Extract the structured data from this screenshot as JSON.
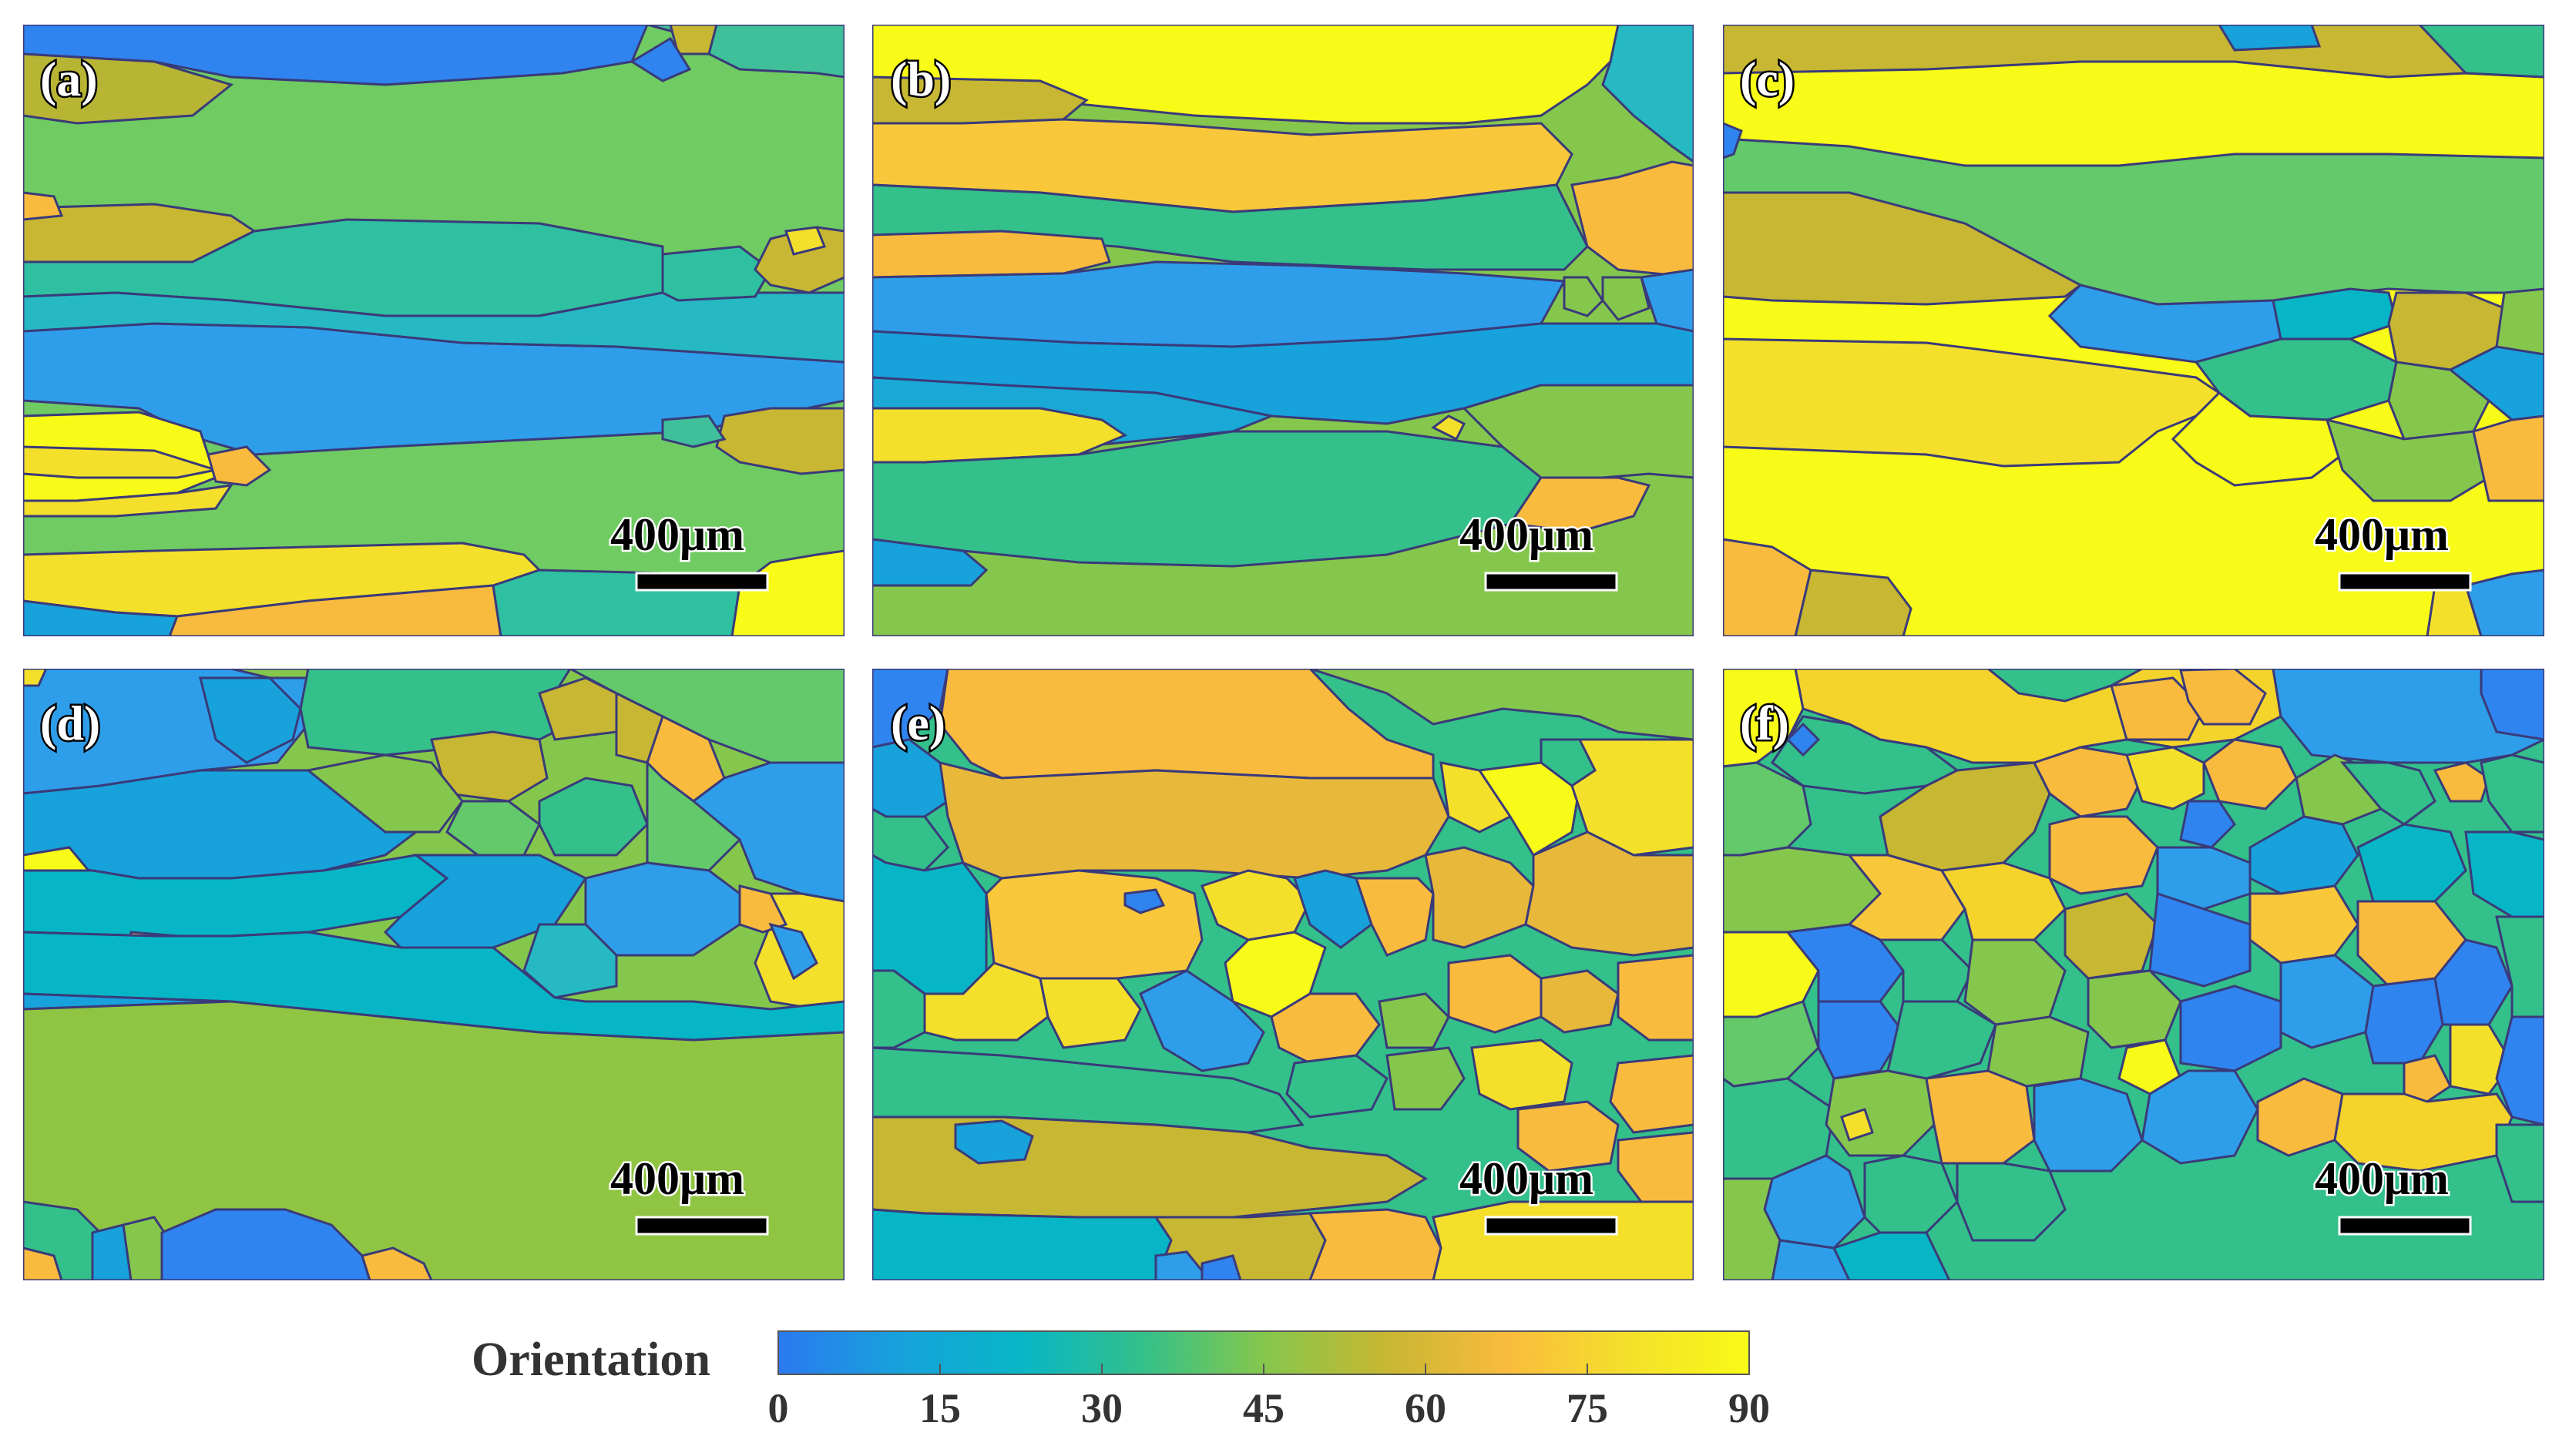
{
  "figure": {
    "panels": [
      {
        "label": "(a)",
        "scale_bar": "400μm"
      },
      {
        "label": "(b)",
        "scale_bar": "400μm"
      },
      {
        "label": "(c)",
        "scale_bar": "400μm"
      },
      {
        "label": "(d)",
        "scale_bar": "400μm"
      },
      {
        "label": "(e)",
        "scale_bar": "400μm"
      },
      {
        "label": "(f)",
        "scale_bar": "400μm"
      }
    ],
    "colorbar": {
      "title": "Orientation",
      "ticks": [
        "0",
        "15",
        "30",
        "45",
        "60",
        "75",
        "90"
      ],
      "range": [
        0,
        90
      ],
      "colors": [
        "#2b79f0",
        "#17a2dc",
        "#07b6c6",
        "#33c08a",
        "#85c74c",
        "#c7b732",
        "#f9bb3d",
        "#f4e02b",
        "#f8fa18"
      ]
    },
    "grain_boundary_color": "#3a3a7a"
  }
}
